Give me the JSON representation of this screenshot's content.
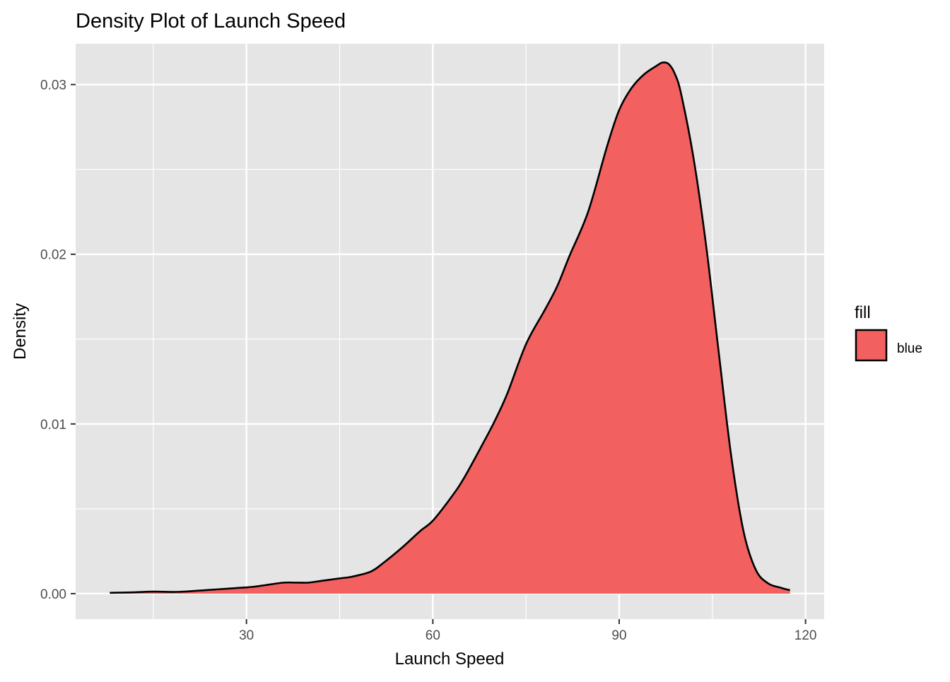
{
  "chart_data": {
    "type": "area",
    "title": "Density Plot of Launch Speed",
    "xlabel": "Launch Speed",
    "ylabel": "Density",
    "xlim": [
      2.5,
      123
    ],
    "ylim": [
      -0.0015,
      0.0324
    ],
    "x_ticks": [
      30,
      60,
      90,
      120
    ],
    "x_tick_labels": [
      "30",
      "60",
      "90",
      "120"
    ],
    "y_ticks": [
      0.0,
      0.01,
      0.02,
      0.03
    ],
    "y_tick_labels": [
      "0.00",
      "0.01",
      "0.02",
      "0.03"
    ],
    "grid": true,
    "legend": {
      "title": "fill",
      "position": "right",
      "entries": [
        {
          "label": "blue",
          "color": "#F26060"
        }
      ]
    },
    "series": [
      {
        "fill": "#F26060",
        "line": "#000000",
        "x": [
          8,
          12,
          15,
          18,
          20,
          24,
          28,
          31,
          33,
          36,
          38,
          40,
          42,
          45,
          47,
          50,
          52,
          55,
          58,
          60,
          63,
          65,
          68,
          70,
          72,
          75,
          78,
          80,
          82,
          85,
          88,
          90,
          92,
          94,
          96,
          97,
          98,
          99,
          100,
          102,
          104,
          106,
          108,
          110,
          112,
          114,
          116,
          117.5
        ],
        "y": [
          5e-05,
          8e-05,
          0.00012,
          0.0001,
          0.00012,
          0.00022,
          0.00032,
          0.0004,
          0.0005,
          0.00065,
          0.00065,
          0.00065,
          0.00075,
          0.0009,
          0.001,
          0.0013,
          0.0018,
          0.0027,
          0.0037,
          0.0043,
          0.0057,
          0.0068,
          0.0088,
          0.0102,
          0.0118,
          0.0147,
          0.0167,
          0.0181,
          0.0199,
          0.0225,
          0.0263,
          0.0285,
          0.0298,
          0.0306,
          0.0311,
          0.0313,
          0.0312,
          0.0306,
          0.0294,
          0.0256,
          0.0205,
          0.0143,
          0.0082,
          0.0037,
          0.0014,
          0.0006,
          0.00035,
          0.0002
        ]
      }
    ],
    "colors": {
      "panel": "#E5E5E5",
      "grid": "#FFFFFF",
      "axis_text": "#4D4D4D",
      "text": "#000000"
    }
  }
}
